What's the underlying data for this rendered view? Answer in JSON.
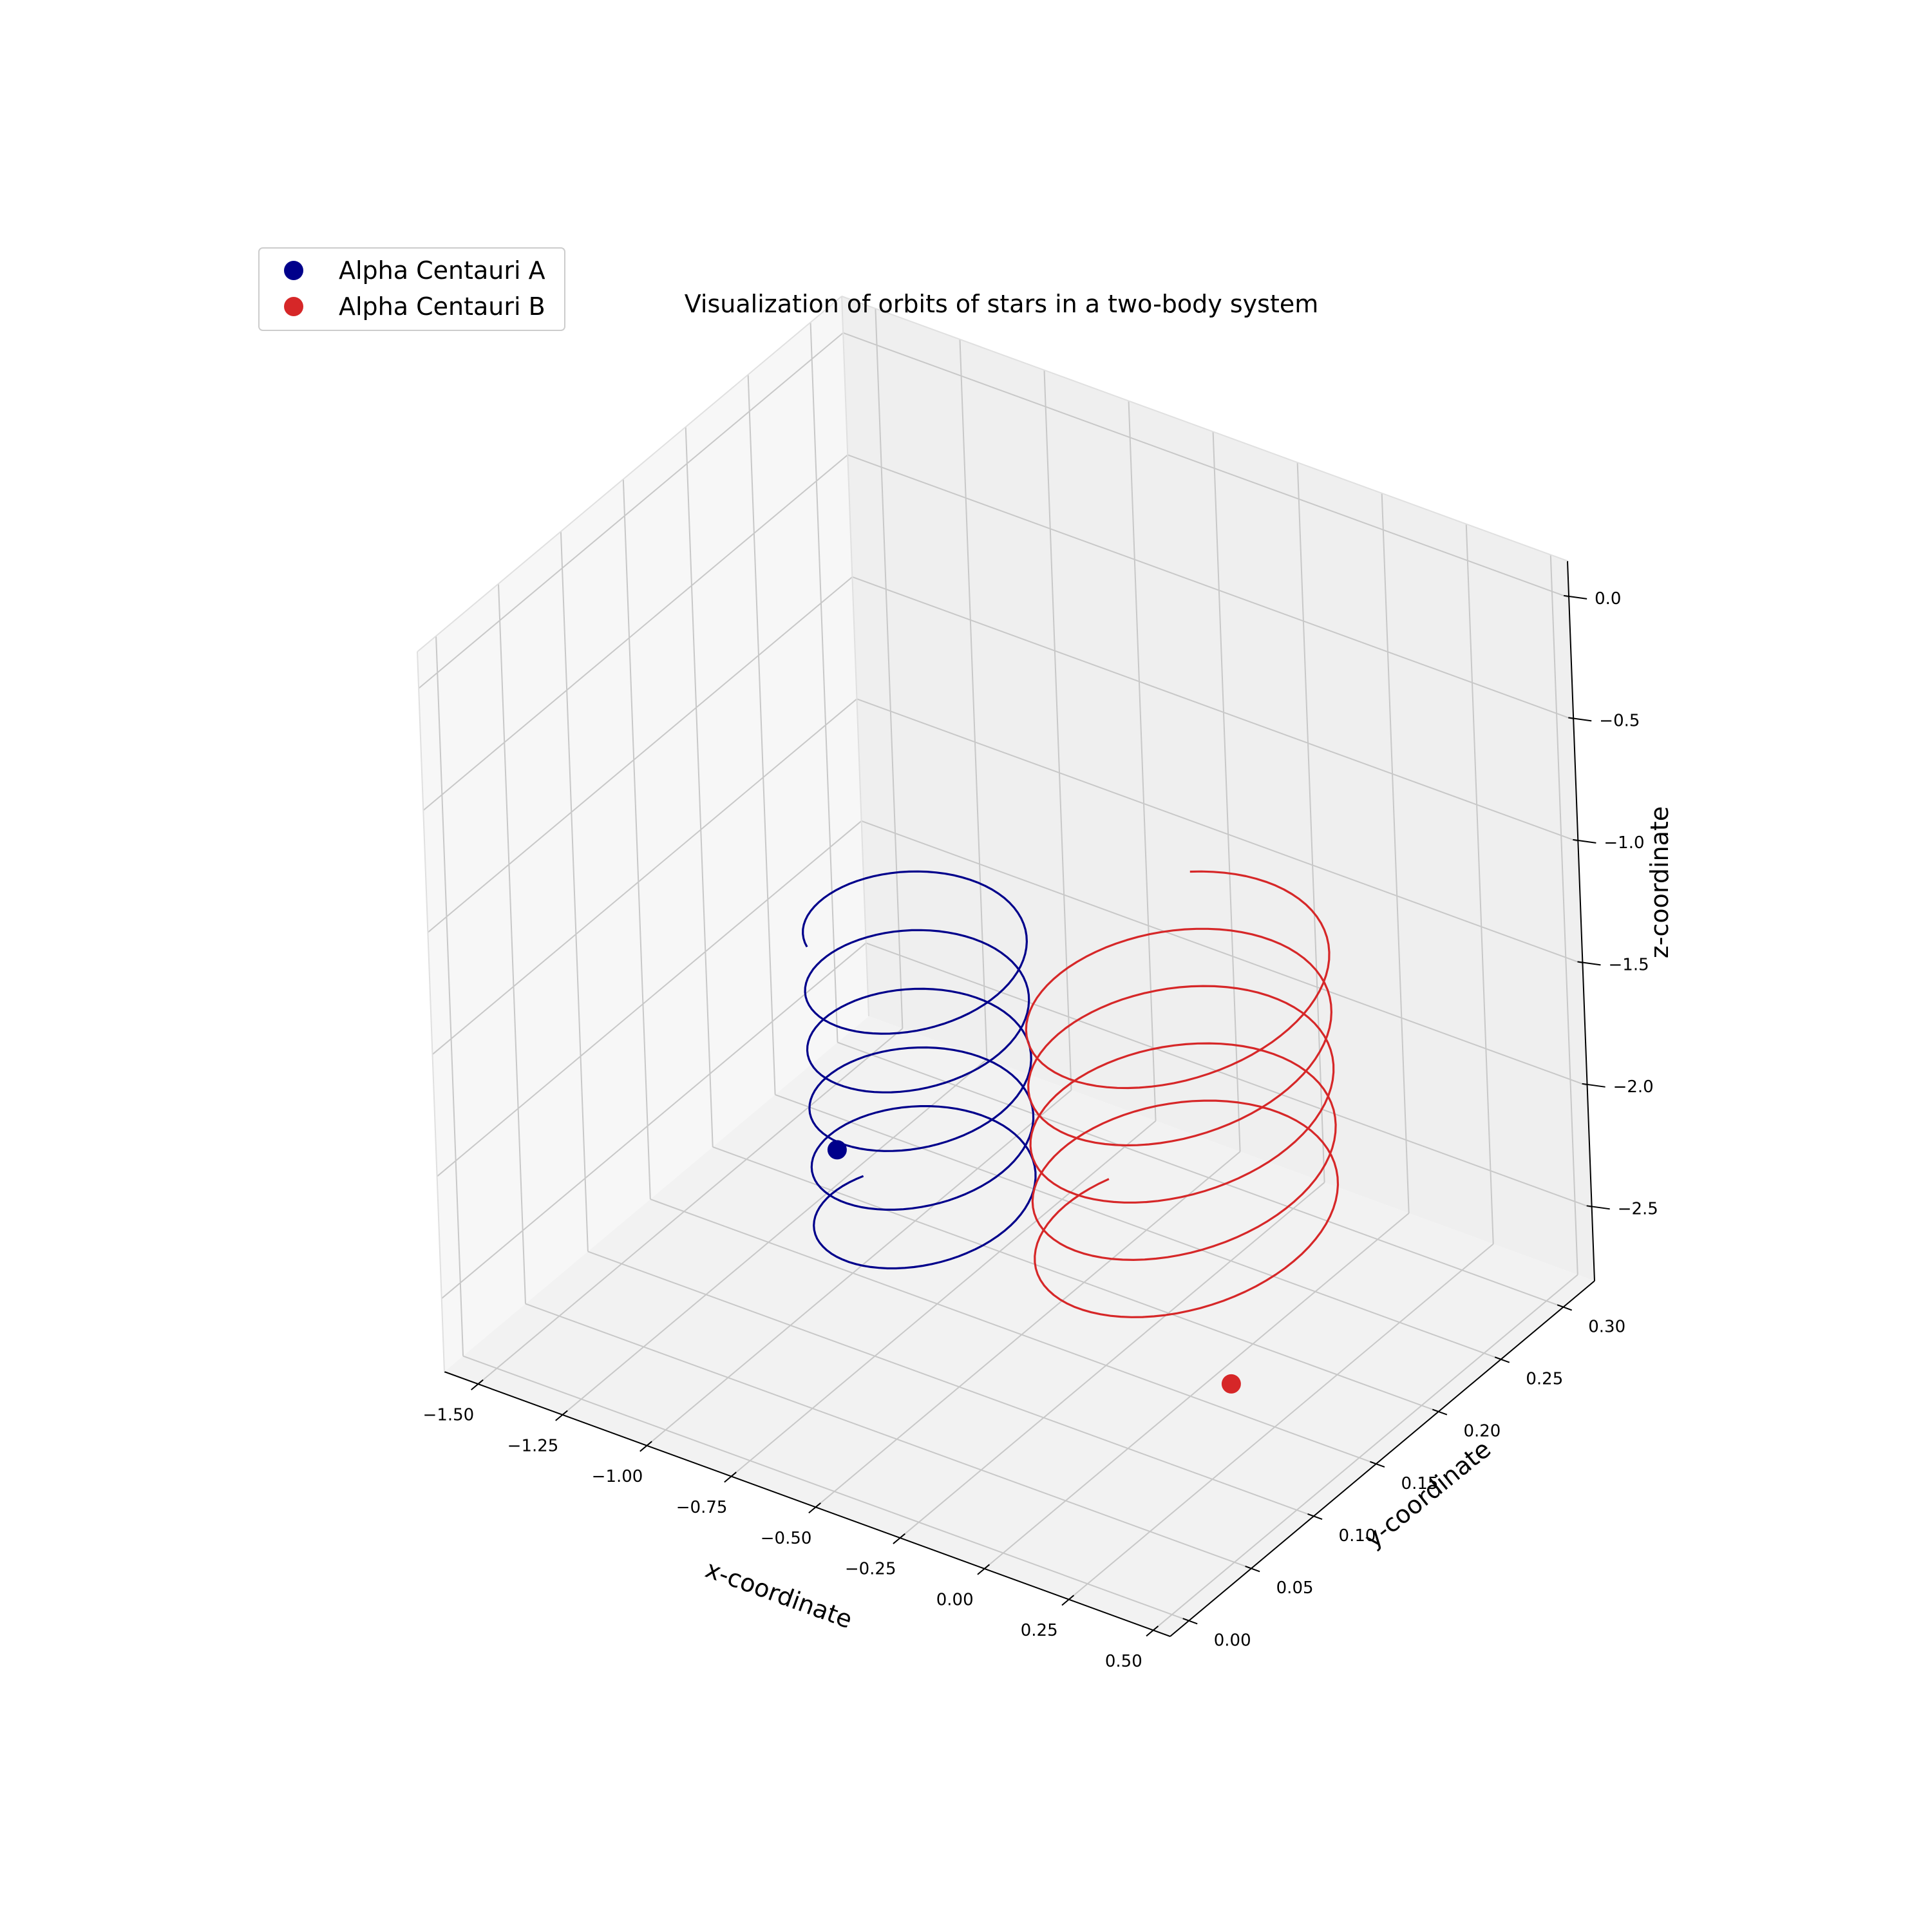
{
  "chart_data": {
    "type": "line",
    "projection": "3d",
    "title": "Visualization of orbits of stars in a two-body system",
    "xlabel": "x-coordinate",
    "ylabel": "y-coordinate",
    "zlabel": "z-coordinate",
    "xlim": [
      -1.6,
      0.55
    ],
    "ylim": [
      -0.015,
      0.325
    ],
    "zlim": [
      -2.8,
      0.15
    ],
    "xticks": [
      -1.5,
      -1.25,
      -1.0,
      -0.75,
      -0.5,
      -0.25,
      0.0,
      0.25,
      0.5
    ],
    "xtick_labels": [
      "−1.50",
      "−1.25",
      "−1.00",
      "−0.75",
      "−0.50",
      "−0.25",
      "0.00",
      "0.25",
      "0.50"
    ],
    "yticks": [
      0.0,
      0.05,
      0.1,
      0.15,
      0.2,
      0.25,
      0.3
    ],
    "ytick_labels": [
      "0.00",
      "0.05",
      "0.10",
      "0.15",
      "0.20",
      "0.25",
      "0.30"
    ],
    "zticks": [
      0.0,
      -0.5,
      -1.0,
      -1.5,
      -2.0,
      -2.5
    ],
    "ztick_labels": [
      "0.0",
      "−0.5",
      "−1.0",
      "−1.5",
      "−2.0",
      "−2.5"
    ],
    "grid": true,
    "legend_position": "upper-left",
    "series": [
      {
        "name": "Alpha Centauri A",
        "color": "#00008B",
        "marker_color": "#00008B",
        "helix": {
          "center_x": -0.66,
          "center_y": 0.12,
          "radius_x": 0.26,
          "radius_y": 0.055,
          "z_start": -2.3,
          "z_end": -1.05,
          "turns": 5.2
        },
        "start_point": {
          "x": -0.84,
          "y": 0.1,
          "z": -2.0
        }
      },
      {
        "name": "Alpha Centauri B",
        "color": "#D62728",
        "marker_color": "#D62728",
        "helix": {
          "center_x": -0.07,
          "center_y": 0.17,
          "radius_x": 0.34,
          "radius_y": 0.08,
          "z_start": -2.3,
          "z_end": -1.15,
          "turns": 4.9
        },
        "start_point": {
          "x": 0.24,
          "y": 0.12,
          "z": -2.5
        }
      }
    ]
  }
}
